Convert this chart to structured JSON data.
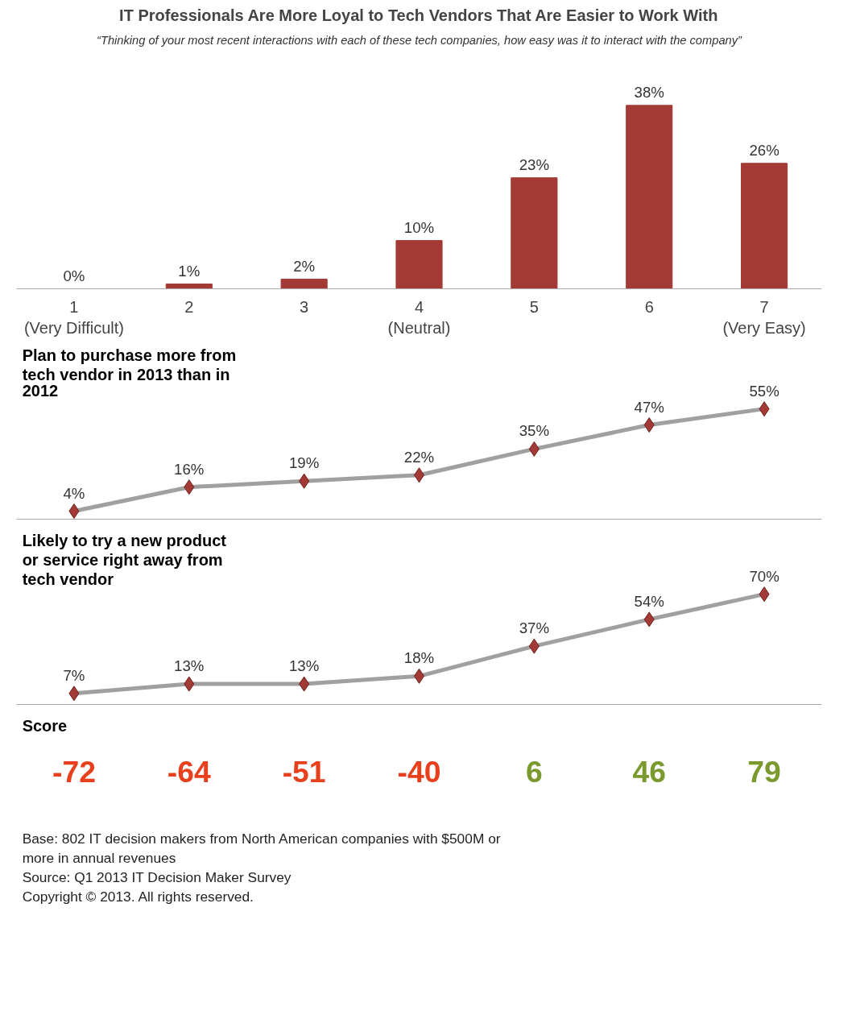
{
  "chart_data": [
    {
      "type": "bar",
      "title": "IT Professionals Are More Loyal to Tech Vendors That Are Easier to Work With",
      "subtitle": "“Thinking of your most recent interactions with each of these tech companies, how easy was it to interact with the company”",
      "categories": [
        "1\n(Very Difficult)",
        "2",
        "3",
        "4\n(Neutral)",
        "5",
        "6",
        "7\n(Very Easy)"
      ],
      "values": [
        0,
        1,
        2,
        10,
        23,
        38,
        26
      ],
      "value_labels": [
        "0%",
        "1%",
        "2%",
        "10%",
        "23%",
        "38%",
        "26%"
      ],
      "color": "#a33a36"
    },
    {
      "type": "line",
      "title": "Plan to purchase more from tech vendor in 2013 than in 2012",
      "categories": [
        null,
        null,
        null,
        null,
        null,
        null,
        null
      ],
      "series": [
        {
          "color": "#a0a0a0",
          "values": [
            4,
            16,
            19,
            22,
            35,
            47,
            55
          ],
          "value_labels": [
            "4%",
            "16%",
            "19%",
            "22%",
            "35%",
            "47%",
            "55%"
          ]
        }
      ],
      "marker": "diamond"
    },
    {
      "type": "line",
      "title": "Likely to try a new product or service right away from tech vendor",
      "categories": [
        null,
        null,
        null,
        null,
        null,
        null,
        null
      ],
      "series": [
        {
          "color": "#a0a0a0",
          "values": [
            7,
            13,
            13,
            18,
            37,
            54,
            70
          ],
          "value_labels": [
            "7%",
            "13%",
            "13%",
            "18%",
            "37%",
            "54%",
            "70%"
          ]
        }
      ],
      "marker": "diamond"
    },
    {
      "type": "other",
      "title": "Score",
      "colors": [
        "#e8401c",
        "#e8401c",
        "#e8401c",
        "#e8401c",
        "#7a9a2e",
        "#7a9a2e",
        "#7a9a2e"
      ],
      "annotations": [
        "-72",
        "-64",
        "-51",
        "-40",
        "6",
        "46",
        "79",
        "Base:    802 IT decision makers from North American companies with $500M or more in annual revenues",
        "Source: Q1 2013 IT Decision Maker Survey",
        "Copyright © 2013. All rights reserved."
      ]
    }
  ]
}
